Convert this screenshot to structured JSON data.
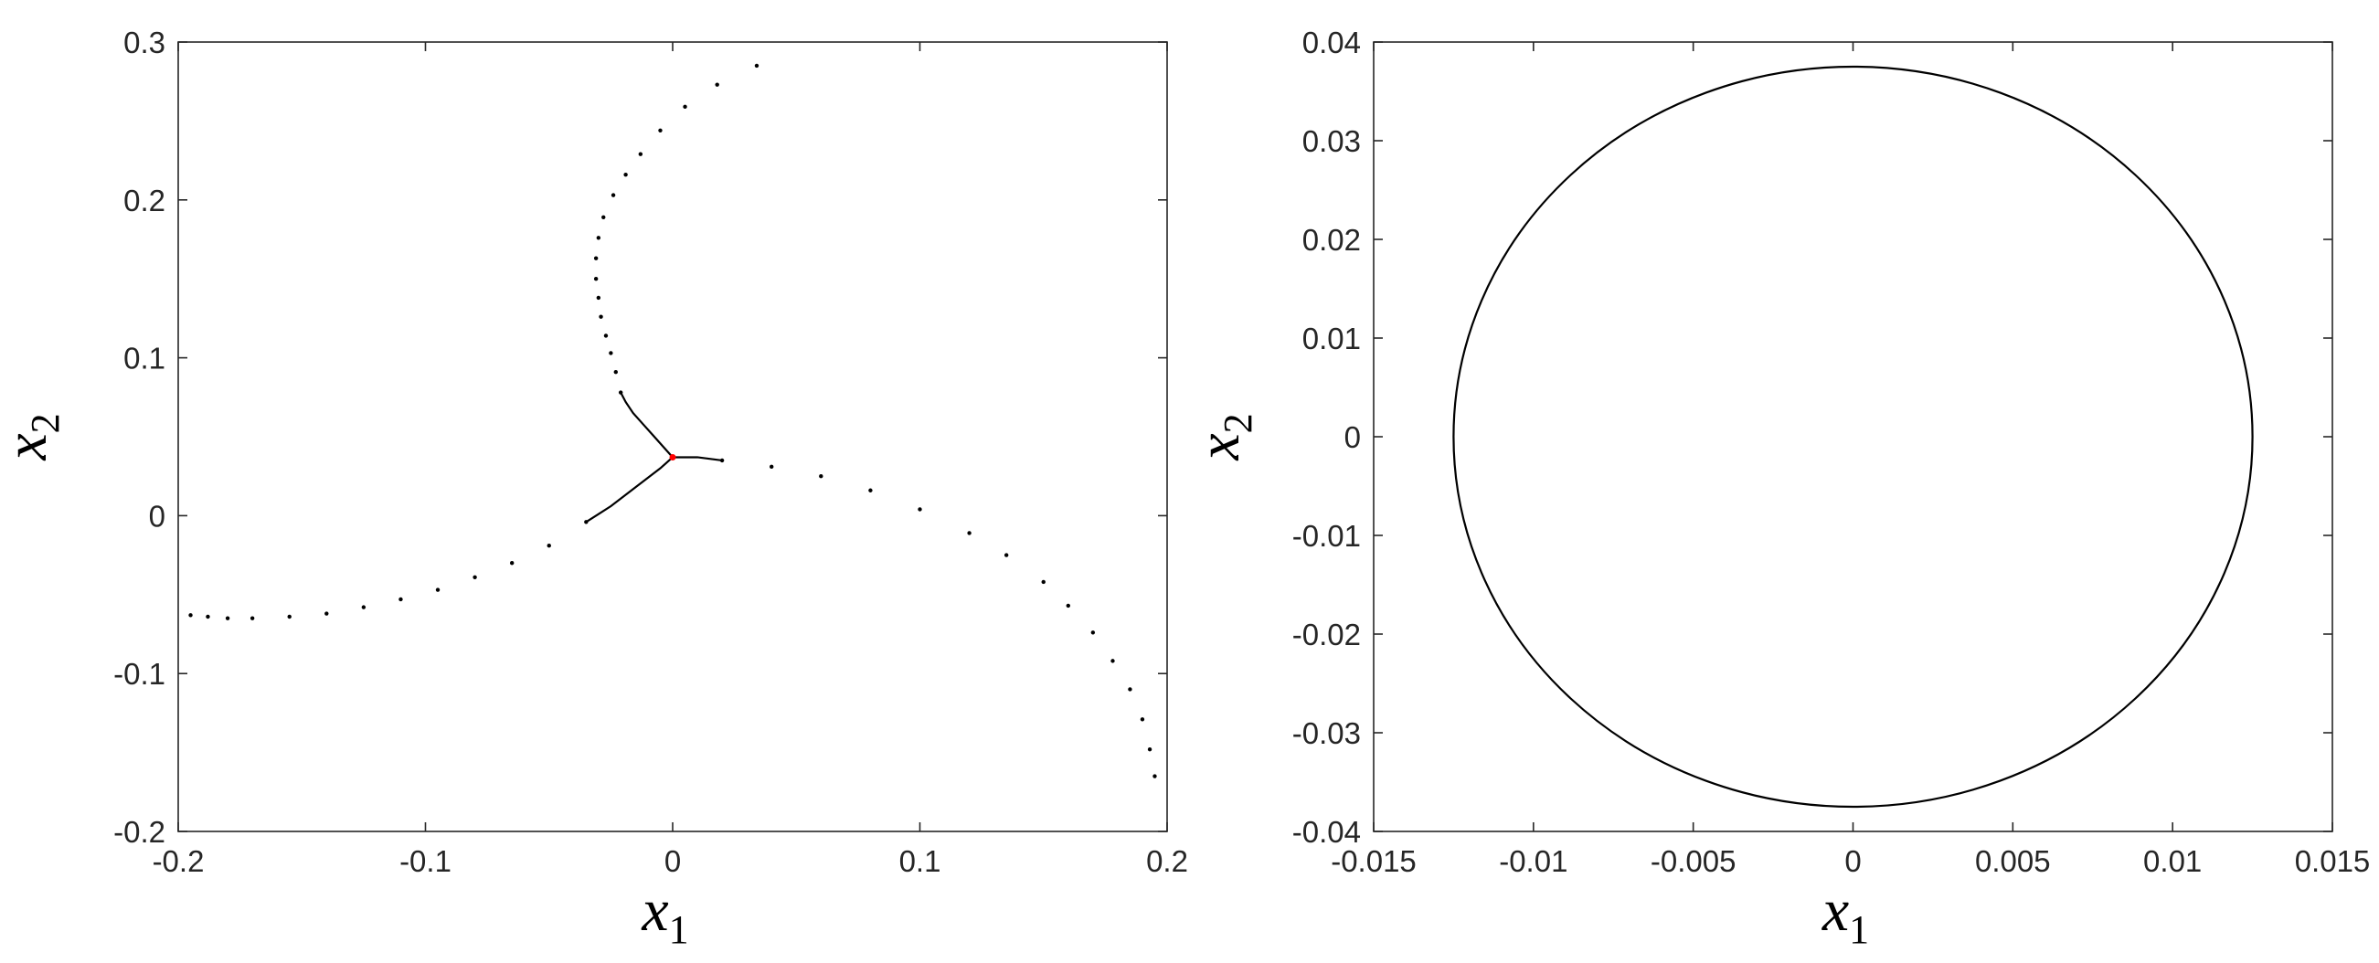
{
  "chart_data": [
    {
      "type": "scatter",
      "xlabel": "x",
      "xlabel_sub": "1",
      "ylabel": "x",
      "ylabel_sub": "2",
      "xlim": [
        -0.2,
        0.2
      ],
      "ylim": [
        -0.2,
        0.3
      ],
      "xticks": [
        -0.2,
        -0.1,
        0,
        0.1,
        0.2
      ],
      "xtick_labels": [
        "-0.2",
        "-0.1",
        "0",
        "0.1",
        "0.2"
      ],
      "yticks": [
        -0.2,
        -0.1,
        0,
        0.1,
        0.2,
        0.3
      ],
      "ytick_labels": [
        "-0.2",
        "-0.1",
        "0",
        "0.1",
        "0.2",
        "0.3"
      ],
      "grid": false,
      "colors": {
        "series": "#000000",
        "center": "#ff0000"
      },
      "center_point": {
        "x": 0,
        "y": 0.037
      },
      "series": [
        {
          "x": [
            -0.021,
            -0.023,
            -0.025,
            -0.027,
            -0.029,
            -0.03,
            -0.031,
            -0.031,
            -0.03,
            -0.028,
            -0.024,
            -0.019,
            -0.013,
            -0.005,
            0.005,
            0.018,
            0.034
          ],
          "y": [
            0.078,
            0.091,
            0.103,
            0.114,
            0.126,
            0.138,
            0.15,
            0.163,
            0.176,
            0.189,
            0.203,
            0.216,
            0.229,
            0.244,
            0.259,
            0.273,
            0.285
          ]
        },
        {
          "x": [
            0.02,
            0.04,
            0.06,
            0.08,
            0.1,
            0.12,
            0.135,
            0.15,
            0.16,
            0.17,
            0.178,
            0.185,
            0.19,
            0.193,
            0.195
          ],
          "y": [
            0.035,
            0.031,
            0.025,
            0.016,
            0.004,
            -0.011,
            -0.025,
            -0.042,
            -0.057,
            -0.074,
            -0.092,
            -0.11,
            -0.129,
            -0.148,
            -0.165
          ]
        },
        {
          "x": [
            -0.035,
            -0.05,
            -0.065,
            -0.08,
            -0.095,
            -0.11,
            -0.125,
            -0.14,
            -0.155,
            -0.17,
            -0.18,
            -0.188,
            -0.195
          ],
          "y": [
            -0.004,
            -0.019,
            -0.03,
            -0.039,
            -0.047,
            -0.053,
            -0.058,
            -0.062,
            -0.064,
            -0.065,
            -0.065,
            -0.064,
            -0.063
          ]
        }
      ],
      "dense_curves": [
        {
          "x": [
            0,
            0.005,
            0.01,
            0.015,
            0.02
          ],
          "y": [
            0.037,
            0.037,
            0.037,
            0.036,
            0.035
          ]
        },
        {
          "x": [
            0,
            -0.004,
            -0.008,
            -0.012,
            -0.016,
            -0.019,
            -0.021
          ],
          "y": [
            0.037,
            0.044,
            0.051,
            0.058,
            0.065,
            0.072,
            0.078
          ]
        },
        {
          "x": [
            0,
            -0.005,
            -0.01,
            -0.015,
            -0.02,
            -0.025,
            -0.03,
            -0.035
          ],
          "y": [
            0.037,
            0.03,
            0.024,
            0.018,
            0.012,
            0.006,
            0.001,
            -0.004
          ]
        }
      ]
    },
    {
      "type": "line",
      "xlabel": "x",
      "xlabel_sub": "1",
      "ylabel": "x",
      "ylabel_sub": "2",
      "xlim": [
        -0.015,
        0.015
      ],
      "ylim": [
        -0.04,
        0.04
      ],
      "xticks": [
        -0.015,
        -0.01,
        -0.005,
        0,
        0.005,
        0.01,
        0.015
      ],
      "xtick_labels": [
        "-0.015",
        "-0.01",
        "-0.005",
        "0",
        "0.005",
        "0.01",
        "0.015"
      ],
      "yticks": [
        -0.04,
        -0.03,
        -0.02,
        -0.01,
        0,
        0.01,
        0.02,
        0.03,
        0.04
      ],
      "ytick_labels": [
        "-0.04",
        "-0.03",
        "-0.02",
        "-0.01",
        "0",
        "0.01",
        "0.02",
        "0.03",
        "0.04"
      ],
      "grid": false,
      "colors": {
        "series": "#000000"
      },
      "ellipse": {
        "cx": 0,
        "cy": 0,
        "rx": 0.0125,
        "ry": 0.0375
      }
    }
  ]
}
